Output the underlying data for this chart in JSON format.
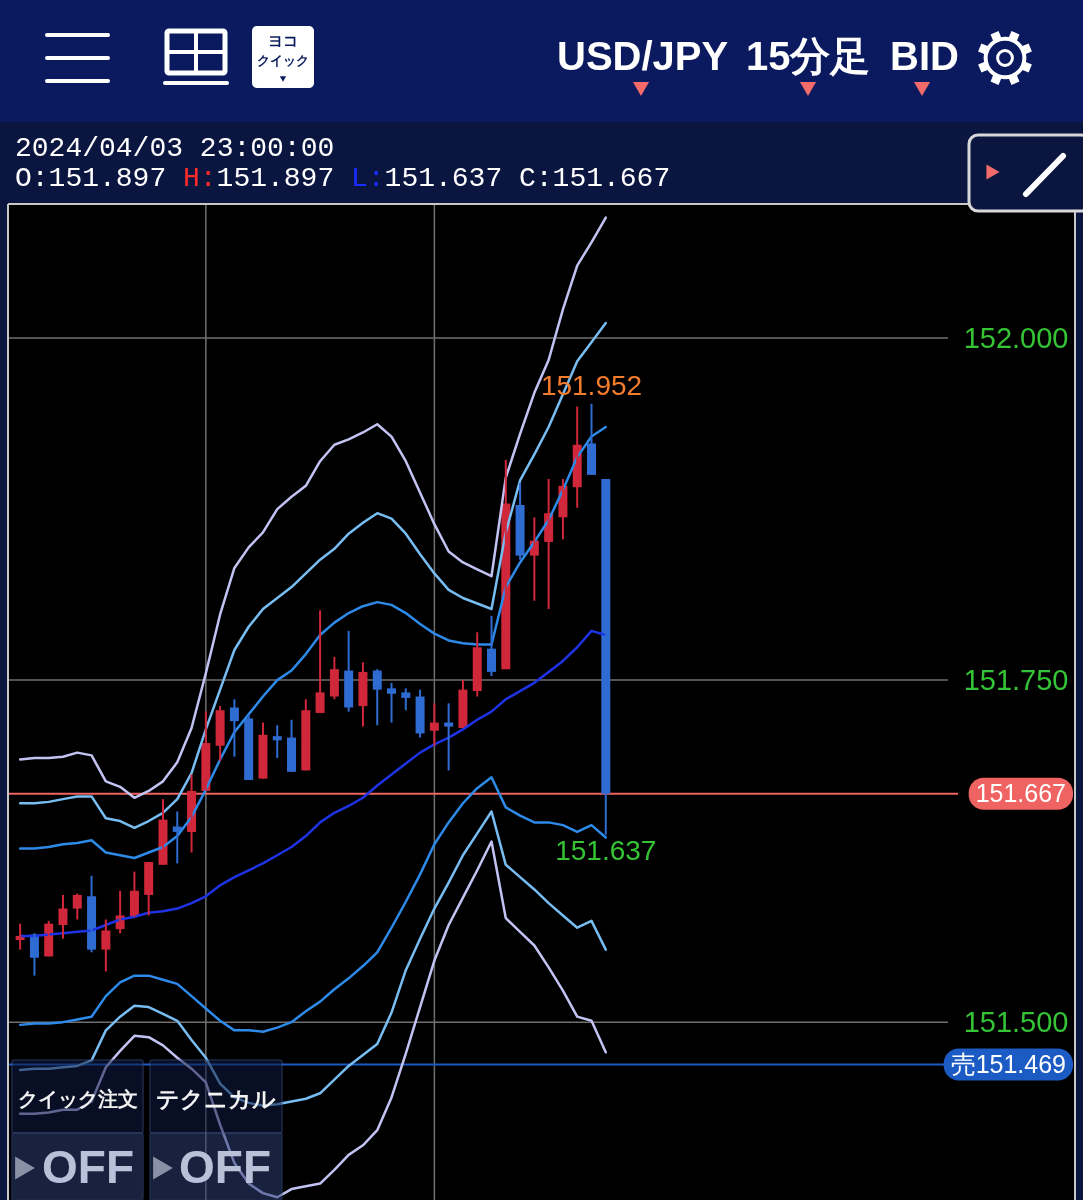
{
  "chart_data": {
    "type": "candlestick",
    "title": "USD/JPY 15分足 BID",
    "subtitle": "2024/04/03 23:00:00",
    "categories": [
      null,
      null,
      null,
      null,
      null,
      null,
      null,
      null,
      null,
      null,
      null,
      null,
      null,
      null,
      null,
      null,
      null,
      null,
      null,
      null,
      null,
      null,
      null,
      null,
      null,
      null,
      null,
      null,
      null,
      null,
      null,
      null,
      null,
      null,
      null,
      null,
      null,
      null,
      null,
      null,
      null,
      null
    ],
    "ylim": [
      151.37,
      152.098
    ],
    "yticks": [
      {
        "value": 151.5,
        "label": "151.500"
      },
      {
        "value": 151.75,
        "label": "151.750"
      },
      {
        "value": 152,
        "label": "152.000"
      }
    ],
    "tick_labels": "y",
    "grid": true,
    "ohlc": [
      [
        151.56,
        151.572,
        151.553,
        151.563
      ],
      [
        151.564,
        151.565,
        151.534,
        151.547
      ],
      [
        151.548,
        151.574,
        151.548,
        151.572
      ],
      [
        151.571,
        151.593,
        151.561,
        151.583
      ],
      [
        151.583,
        151.594,
        151.575,
        151.593
      ],
      [
        151.592,
        151.607,
        151.551,
        151.553
      ],
      [
        151.553,
        151.575,
        151.537,
        151.567
      ],
      [
        151.568,
        151.596,
        151.565,
        151.578
      ],
      [
        151.577,
        151.61,
        151.577,
        151.596
      ],
      [
        151.593,
        151.617,
        151.578,
        151.617
      ],
      [
        151.615,
        151.663,
        151.615,
        151.648
      ],
      [
        151.643,
        151.654,
        151.616,
        151.639
      ],
      [
        151.639,
        151.681,
        151.624,
        151.669
      ],
      [
        151.669,
        151.727,
        151.669,
        151.704
      ],
      [
        151.702,
        151.731,
        151.691,
        151.728
      ],
      [
        151.73,
        151.736,
        151.694,
        151.72
      ],
      [
        151.722,
        151.725,
        151.677,
        151.677
      ],
      [
        151.678,
        151.719,
        151.678,
        151.71
      ],
      [
        151.709,
        151.717,
        151.693,
        151.706
      ],
      [
        151.708,
        151.721,
        151.683,
        151.683
      ],
      [
        151.684,
        151.736,
        151.684,
        151.728
      ],
      [
        151.726,
        151.801,
        151.726,
        151.741
      ],
      [
        151.738,
        151.767,
        151.736,
        151.758
      ],
      [
        151.757,
        151.786,
        151.727,
        151.73
      ],
      [
        151.731,
        151.763,
        151.716,
        151.756
      ],
      [
        151.757,
        151.758,
        151.717,
        151.743
      ],
      [
        151.744,
        151.748,
        151.719,
        151.74
      ],
      [
        151.741,
        151.744,
        151.728,
        151.737
      ],
      [
        151.738,
        151.743,
        151.708,
        151.711
      ],
      [
        151.713,
        151.733,
        151.702,
        151.719
      ],
      [
        151.719,
        151.733,
        151.684,
        151.716
      ],
      [
        151.715,
        151.75,
        151.715,
        151.743
      ],
      [
        151.742,
        151.785,
        151.738,
        151.774
      ],
      [
        151.773,
        151.797,
        151.753,
        151.756
      ],
      [
        151.758,
        151.911,
        151.758,
        151.879
      ],
      [
        151.878,
        151.894,
        151.838,
        151.841
      ],
      [
        151.841,
        151.869,
        151.808,
        151.852
      ],
      [
        151.851,
        151.897,
        151.802,
        151.872
      ],
      [
        151.869,
        151.897,
        151.853,
        151.892
      ],
      [
        151.891,
        151.95,
        151.876,
        151.922
      ],
      [
        151.923,
        151.952,
        151.9,
        151.9
      ],
      [
        151.897,
        151.897,
        151.637,
        151.667
      ]
    ],
    "colors": [
      "#d0283a",
      "#2f6cd2",
      "#d0283a",
      "#d0283a",
      "#d0283a",
      "#2f6cd2",
      "#d0283a",
      "#d0283a",
      "#d0283a",
      "#d0283a",
      "#d0283a",
      "#2f6cd2",
      "#d0283a",
      "#d0283a",
      "#d0283a",
      "#2f6cd2",
      "#2f6cd2",
      "#d0283a",
      "#2f6cd2",
      "#2f6cd2",
      "#d0283a",
      "#d0283a",
      "#d0283a",
      "#2f6cd2",
      "#d0283a",
      "#2f6cd2",
      "#2f6cd2",
      "#2f6cd2",
      "#2f6cd2",
      "#d0283a",
      "#2f6cd2",
      "#d0283a",
      "#d0283a",
      "#2f6cd2",
      "#d0283a",
      "#2f6cd2",
      "#d0283a",
      "#d0283a",
      "#d0283a",
      "#d0283a",
      "#2f6cd2",
      "#2f6cd2"
    ],
    "series": [
      {
        "type": "line",
        "color": "#c3c3f3",
        "values": [
          151.692,
          151.693,
          151.693,
          151.694,
          151.697,
          151.695,
          151.676,
          151.672,
          151.664,
          151.669,
          151.676,
          151.69,
          151.715,
          151.755,
          151.798,
          151.832,
          151.847,
          151.858,
          151.875,
          151.884,
          151.892,
          151.91,
          151.922,
          151.926,
          151.931,
          151.937,
          151.928,
          151.91,
          151.887,
          151.864,
          151.844,
          151.836,
          151.831,
          151.826,
          151.898,
          151.93,
          151.96,
          151.984,
          152.021,
          152.053,
          152.07,
          152.088
        ]
      },
      {
        "type": "line",
        "color": "#78bdf2",
        "values": [
          151.66,
          151.66,
          151.661,
          151.663,
          151.665,
          151.665,
          151.649,
          151.647,
          151.642,
          151.647,
          151.653,
          151.663,
          151.682,
          151.714,
          151.743,
          151.772,
          151.789,
          151.802,
          151.81,
          151.818,
          151.828,
          151.838,
          151.846,
          151.857,
          151.865,
          151.872,
          151.868,
          151.857,
          151.842,
          151.828,
          151.816,
          151.81,
          151.806,
          151.802,
          151.858,
          151.896,
          151.915,
          151.935,
          151.959,
          151.983,
          151.997,
          152.011
        ]
      },
      {
        "type": "line",
        "color": "#2d8ae8",
        "values": [
          151.627,
          151.627,
          151.628,
          151.63,
          151.631,
          151.633,
          151.624,
          151.622,
          151.62,
          151.624,
          151.628,
          151.636,
          151.65,
          151.67,
          151.692,
          151.712,
          151.725,
          151.738,
          151.75,
          151.757,
          151.769,
          151.783,
          151.792,
          151.799,
          151.804,
          151.807,
          151.805,
          151.799,
          151.791,
          151.784,
          151.779,
          151.777,
          151.776,
          151.776,
          151.818,
          151.836,
          151.851,
          151.867,
          151.889,
          151.913,
          151.928,
          151.935
        ]
      },
      {
        "type": "line",
        "color": "#1f33e6",
        "values": [
          151.563,
          151.563,
          151.564,
          151.565,
          151.566,
          151.567,
          151.571,
          151.575,
          151.577,
          151.58,
          151.581,
          151.583,
          151.587,
          151.592,
          151.6,
          151.606,
          151.611,
          151.616,
          151.622,
          151.628,
          151.636,
          151.646,
          151.653,
          151.658,
          151.664,
          151.673,
          151.681,
          151.689,
          151.697,
          151.703,
          151.708,
          151.714,
          151.721,
          151.727,
          151.736,
          151.742,
          151.748,
          151.756,
          151.764,
          151.774,
          151.786,
          151.783
        ]
      },
      {
        "type": "line",
        "color": "#2d8ae8",
        "values": [
          151.498,
          151.499,
          151.499,
          151.5,
          151.502,
          151.504,
          151.519,
          151.529,
          151.534,
          151.534,
          151.531,
          151.528,
          151.519,
          151.51,
          151.501,
          151.494,
          151.494,
          151.493,
          151.496,
          151.5,
          151.508,
          151.515,
          151.524,
          151.532,
          151.541,
          151.551,
          151.569,
          151.588,
          151.608,
          151.63,
          151.646,
          151.66,
          151.671,
          151.679,
          151.657,
          151.651,
          151.646,
          151.646,
          151.644,
          151.639,
          151.644,
          151.635
        ]
      },
      {
        "type": "line",
        "color": "#78bdf2",
        "values": [
          151.465,
          151.466,
          151.466,
          151.467,
          151.468,
          151.472,
          151.494,
          151.504,
          151.512,
          151.511,
          151.506,
          151.501,
          151.487,
          151.474,
          151.455,
          151.445,
          151.441,
          151.439,
          151.44,
          151.442,
          151.444,
          151.448,
          151.458,
          151.468,
          151.476,
          151.484,
          151.507,
          151.538,
          151.561,
          151.583,
          151.602,
          151.622,
          151.638,
          151.654,
          151.615,
          151.606,
          151.597,
          151.587,
          151.578,
          151.569,
          151.574,
          151.553
        ]
      },
      {
        "type": "line",
        "color": "#c3c3f3",
        "values": [
          151.433,
          151.433,
          151.434,
          151.436,
          151.436,
          151.442,
          151.467,
          151.479,
          151.49,
          151.489,
          151.483,
          151.474,
          151.466,
          151.456,
          151.425,
          151.397,
          151.382,
          151.375,
          151.372,
          151.378,
          151.38,
          151.382,
          151.392,
          151.403,
          151.41,
          151.421,
          151.445,
          151.477,
          151.511,
          151.545,
          151.571,
          151.591,
          151.611,
          151.632,
          151.576,
          151.566,
          151.556,
          151.54,
          151.523,
          151.504,
          151.501,
          151.478
        ]
      }
    ],
    "ref_lines": [
      {
        "axis": "y",
        "value": 151.667,
        "label": "151.667",
        "color": "#ef6462"
      },
      {
        "axis": "y",
        "value": 151.469,
        "label": "売151.469",
        "color": "#1d5bc4"
      }
    ],
    "annotations": [
      {
        "text": "151.952",
        "y": 151.952
      },
      {
        "text": "151.637",
        "y": 151.637
      },
      "O:151.897 H:151.897 L:151.637 C:151.667",
      "ヨコ",
      "クイック",
      "クイック注文",
      "OFF",
      "テクニカル",
      "OFF"
    ]
  }
}
